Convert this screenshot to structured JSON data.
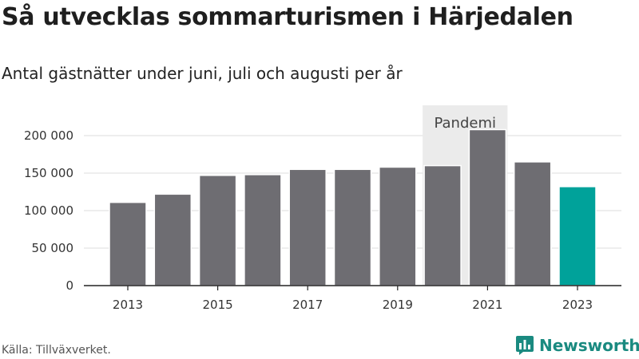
{
  "chart_data": {
    "type": "bar",
    "title": "Så utvecklas sommarturismen i Härjedalen",
    "subtitle": "Antal gästnätter under juni, juli och augusti per år",
    "categories": [
      "2013",
      "2014",
      "2015",
      "2016",
      "2017",
      "2018",
      "2019",
      "2020",
      "2021",
      "2022",
      "2023"
    ],
    "x_tick_labels": [
      "2013",
      "2015",
      "2017",
      "2019",
      "2021",
      "2023"
    ],
    "values": [
      111000,
      122000,
      147000,
      148000,
      155000,
      155000,
      158000,
      160000,
      208000,
      165000,
      132000
    ],
    "ylim": [
      0,
      200000
    ],
    "y_ticks": [
      0,
      50000,
      100000,
      150000,
      200000
    ],
    "y_tick_labels": [
      "0",
      "50 000",
      "100 000",
      "150 000",
      "200 000"
    ],
    "grid": true,
    "highlight": {
      "category": "2023",
      "color": "#00a29a"
    },
    "bar_color": "#6e6d72",
    "annotation": {
      "label": "Pandemi",
      "from": "2020",
      "to": "2021",
      "color": "#ebebeb"
    },
    "source": "Källa: Tillväxverket."
  },
  "brand": {
    "name": "Newsworthy",
    "icon": "newsworthy-logo-icon",
    "color": "#1a8a80"
  }
}
